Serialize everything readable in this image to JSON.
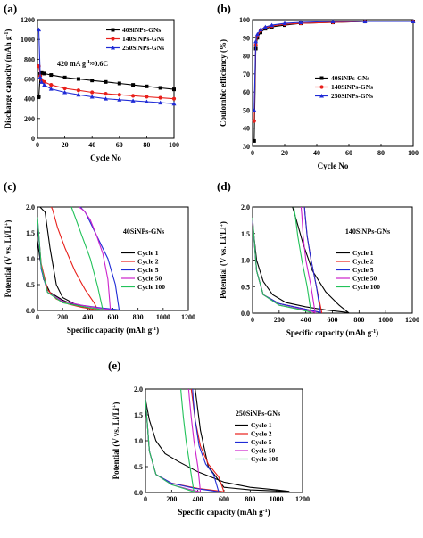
{
  "chart_data": [
    {
      "id": "a",
      "panel_label": "(a)",
      "type": "line",
      "xlabel": "Cycle No",
      "ylabel": "Discharge capacity (mAh g-1)",
      "annotation": "420 mA g-1≈0.6C",
      "xlim": [
        0,
        100
      ],
      "ylim": [
        0,
        1200
      ],
      "xticks": [
        "0",
        "20",
        "40",
        "60",
        "80",
        "100"
      ],
      "yticks": [
        "0",
        "200",
        "400",
        "600",
        "800",
        "1000",
        "1200"
      ],
      "legend_position": "top-right",
      "series": [
        {
          "name": "40SiNPs-GNs",
          "color": "#000000",
          "marker": "square",
          "x": [
            1,
            2,
            3,
            5,
            10,
            20,
            30,
            40,
            50,
            60,
            70,
            80,
            90,
            100
          ],
          "y": [
            420,
            650,
            660,
            655,
            640,
            615,
            600,
            585,
            570,
            555,
            540,
            525,
            510,
            495
          ]
        },
        {
          "name": "140SiNPs-GNs",
          "color": "#e8201b",
          "marker": "circle",
          "x": [
            1,
            2,
            3,
            5,
            10,
            20,
            30,
            40,
            50,
            60,
            70,
            80,
            90,
            100
          ],
          "y": [
            730,
            630,
            590,
            570,
            540,
            505,
            485,
            465,
            450,
            440,
            430,
            420,
            410,
            400
          ]
        },
        {
          "name": "250SiNPs-GNs",
          "color": "#1f2bd6",
          "marker": "triangle",
          "x": [
            1,
            2,
            3,
            5,
            10,
            20,
            30,
            40,
            50,
            60,
            70,
            80,
            90,
            100
          ],
          "y": [
            1100,
            620,
            570,
            540,
            500,
            465,
            440,
            420,
            400,
            390,
            380,
            370,
            360,
            350
          ]
        }
      ]
    },
    {
      "id": "b",
      "panel_label": "(b)",
      "type": "line",
      "xlabel": "Cycle No",
      "ylabel": "Coulombic efficiency (%)",
      "xlim": [
        0,
        100
      ],
      "ylim": [
        30,
        100
      ],
      "xticks": [
        "0",
        "20",
        "40",
        "60",
        "80",
        "100"
      ],
      "yticks": [
        "30",
        "40",
        "50",
        "60",
        "70",
        "80",
        "90",
        "100"
      ],
      "legend_position": "bottom-right",
      "series": [
        {
          "name": "40SiNPs-GNs",
          "color": "#000000",
          "marker": "square",
          "x": [
            1,
            2,
            3,
            5,
            8,
            12,
            20,
            30,
            50,
            70,
            100
          ],
          "y": [
            33,
            84,
            90,
            93,
            95,
            96,
            97,
            98,
            98.5,
            99,
            99
          ]
        },
        {
          "name": "140SiNPs-GNs",
          "color": "#e8201b",
          "marker": "circle",
          "x": [
            1,
            2,
            3,
            5,
            8,
            12,
            20,
            30,
            50,
            70,
            100
          ],
          "y": [
            44,
            86,
            91,
            94,
            95.5,
            96.5,
            97.5,
            98,
            98.5,
            99,
            99
          ]
        },
        {
          "name": "250SiNPs-GNs",
          "color": "#1f2bd6",
          "marker": "triangle",
          "x": [
            1,
            2,
            3,
            5,
            8,
            12,
            20,
            30,
            50,
            70,
            100
          ],
          "y": [
            50,
            88,
            92,
            94.5,
            96,
            97,
            98,
            98.5,
            99,
            99,
            99
          ]
        }
      ]
    },
    {
      "id": "c",
      "panel_label": "(c)",
      "type": "line",
      "title": "40SiNPs-GNs",
      "xlabel": "Specific capacity (mAh g-1)",
      "ylabel": "Potential (V vs. Li/Li+)",
      "xlim": [
        0,
        1200
      ],
      "ylim": [
        0,
        2.0
      ],
      "xticks": [
        "0",
        "200",
        "400",
        "600",
        "800",
        "1000",
        "1200"
      ],
      "yticks": [
        "0.0",
        "0.5",
        "1.0",
        "1.5",
        "2.0"
      ],
      "legend_position": "right",
      "series": [
        {
          "name": "Cycle 1",
          "color": "#000000",
          "x": [
            0,
            20,
            50,
            100,
            200,
            300,
            400,
            420,
            400,
            300,
            200,
            150,
            100,
            60,
            20,
            5,
            0
          ],
          "y": [
            1.35,
            1.0,
            0.6,
            0.35,
            0.2,
            0.1,
            0.05,
            0.02,
            0.05,
            0.12,
            0.25,
            0.5,
            1.2,
            1.9,
            2.0,
            2.0,
            2.0
          ]
        },
        {
          "name": "Cycle 2",
          "color": "#e8201b",
          "x": [
            0,
            30,
            80,
            150,
            250,
            350,
            450,
            480,
            450,
            380,
            300,
            220,
            160,
            120,
            110
          ],
          "y": [
            1.7,
            0.9,
            0.4,
            0.22,
            0.12,
            0.06,
            0.02,
            0.01,
            0.15,
            0.4,
            0.75,
            1.2,
            1.6,
            1.95,
            2.0
          ]
        },
        {
          "name": "Cycle 5",
          "color": "#1f2bd6",
          "x": [
            0,
            30,
            80,
            200,
            350,
            500,
            620,
            650,
            620,
            560,
            480,
            420,
            380,
            340
          ],
          "y": [
            1.75,
            0.8,
            0.35,
            0.18,
            0.1,
            0.05,
            0.02,
            0.01,
            0.5,
            1.0,
            1.4,
            1.7,
            1.9,
            2.0
          ]
        },
        {
          "name": "Cycle 50",
          "color": "#cc22cc",
          "x": [
            0,
            30,
            80,
            200,
            350,
            500,
            560,
            580,
            560,
            520,
            470,
            420,
            370,
            330
          ],
          "y": [
            1.8,
            0.85,
            0.35,
            0.18,
            0.1,
            0.04,
            0.02,
            0.01,
            0.6,
            1.1,
            1.45,
            1.75,
            1.93,
            2.0
          ]
        },
        {
          "name": "Cycle 100",
          "color": "#22c25a",
          "x": [
            0,
            30,
            80,
            200,
            350,
            480,
            520,
            480,
            420,
            360,
            300,
            270
          ],
          "y": [
            1.8,
            0.85,
            0.35,
            0.15,
            0.08,
            0.03,
            0.01,
            0.45,
            1.0,
            1.4,
            1.8,
            2.0
          ]
        }
      ]
    },
    {
      "id": "d",
      "panel_label": "(d)",
      "type": "line",
      "title": "140SiNPs-GNs",
      "xlabel": "Specific capacity (mAh g-1)",
      "ylabel": "Potential (V vs. Li/Li+)",
      "xlim": [
        0,
        1200
      ],
      "ylim": [
        0,
        2.0
      ],
      "xticks": [
        "0",
        "200",
        "400",
        "600",
        "800",
        "1000",
        "1200"
      ],
      "yticks": [
        "0.0",
        "0.5",
        "1.0",
        "1.5",
        "2.0"
      ],
      "legend_position": "right",
      "series": [
        {
          "name": "Cycle 1",
          "color": "#000000",
          "x": [
            0,
            30,
            80,
            150,
            250,
            400,
            550,
            650,
            720,
            650,
            550,
            450,
            380,
            330,
            300
          ],
          "y": [
            1.7,
            1.0,
            0.6,
            0.35,
            0.2,
            0.12,
            0.06,
            0.03,
            0.01,
            0.15,
            0.4,
            0.8,
            1.3,
            1.75,
            2.0
          ]
        },
        {
          "name": "Cycle 2",
          "color": "#e8201b",
          "x": [
            0,
            30,
            80,
            200,
            350,
            480,
            520,
            480,
            440,
            410,
            395,
            390
          ],
          "y": [
            1.75,
            0.8,
            0.35,
            0.18,
            0.1,
            0.03,
            0.01,
            0.5,
            1.0,
            1.45,
            1.85,
            2.0
          ]
        },
        {
          "name": "Cycle 5",
          "color": "#1f2bd6",
          "x": [
            0,
            30,
            80,
            200,
            350,
            480,
            510,
            480,
            440,
            410,
            395,
            390
          ],
          "y": [
            1.75,
            0.8,
            0.35,
            0.18,
            0.1,
            0.03,
            0.01,
            0.5,
            1.0,
            1.45,
            1.85,
            2.0
          ]
        },
        {
          "name": "Cycle 50",
          "color": "#cc22cc",
          "x": [
            0,
            30,
            80,
            200,
            350,
            450,
            470,
            440,
            400,
            380,
            370,
            365
          ],
          "y": [
            1.8,
            0.8,
            0.35,
            0.15,
            0.08,
            0.03,
            0.01,
            0.5,
            1.0,
            1.45,
            1.85,
            2.0
          ]
        },
        {
          "name": "Cycle 100",
          "color": "#22c25a",
          "x": [
            0,
            30,
            80,
            200,
            330,
            420,
            440,
            410,
            370,
            340,
            320,
            310
          ],
          "y": [
            1.8,
            0.8,
            0.35,
            0.15,
            0.08,
            0.03,
            0.01,
            0.5,
            1.0,
            1.45,
            1.85,
            2.0
          ]
        }
      ]
    },
    {
      "id": "e",
      "panel_label": "(e)",
      "type": "line",
      "title": "250SiNPs-GNs",
      "xlabel": "Specific capacity (mAh g-1)",
      "ylabel": "Potential (V vs. Li/Li+)",
      "xlim": [
        0,
        1200
      ],
      "ylim": [
        0,
        2.0
      ],
      "xticks": [
        "0",
        "200",
        "400",
        "600",
        "800",
        "1000",
        "1200"
      ],
      "yticks": [
        "0.0",
        "0.5",
        "1.0",
        "1.5",
        "2.0"
      ],
      "legend_position": "right",
      "series": [
        {
          "name": "Cycle 1",
          "color": "#000000",
          "x": [
            0,
            30,
            80,
            150,
            250,
            400,
            600,
            800,
            1000,
            1100,
            1000,
            800,
            600,
            480,
            420,
            380
          ],
          "y": [
            1.8,
            1.4,
            1.0,
            0.75,
            0.6,
            0.4,
            0.2,
            0.1,
            0.05,
            0.02,
            0.03,
            0.05,
            0.1,
            0.5,
            1.2,
            2.0
          ]
        },
        {
          "name": "Cycle 2",
          "color": "#e8201b",
          "x": [
            0,
            30,
            80,
            200,
            400,
            560,
            600,
            560,
            480,
            420,
            380,
            360,
            350
          ],
          "y": [
            1.8,
            0.8,
            0.35,
            0.18,
            0.08,
            0.03,
            0.01,
            0.3,
            0.55,
            0.9,
            1.4,
            1.8,
            2.0
          ]
        },
        {
          "name": "Cycle 5",
          "color": "#1f2bd6",
          "x": [
            0,
            30,
            80,
            200,
            380,
            520,
            560,
            520,
            460,
            410,
            380,
            365,
            360
          ],
          "y": [
            1.8,
            0.8,
            0.35,
            0.18,
            0.08,
            0.03,
            0.01,
            0.35,
            0.55,
            0.9,
            1.4,
            1.8,
            2.0
          ]
        },
        {
          "name": "Cycle 50",
          "color": "#cc22cc",
          "x": [
            0,
            30,
            80,
            200,
            320,
            400,
            420,
            400,
            370,
            350,
            335,
            330
          ],
          "y": [
            1.8,
            0.8,
            0.35,
            0.15,
            0.07,
            0.02,
            0.01,
            0.5,
            1.0,
            1.45,
            1.85,
            2.0
          ]
        },
        {
          "name": "Cycle 100",
          "color": "#22c25a",
          "x": [
            0,
            30,
            80,
            200,
            300,
            360,
            370,
            340,
            310,
            290,
            275,
            270
          ],
          "y": [
            1.8,
            0.8,
            0.35,
            0.15,
            0.07,
            0.02,
            0.01,
            0.5,
            1.0,
            1.45,
            1.85,
            2.0
          ]
        }
      ]
    }
  ]
}
